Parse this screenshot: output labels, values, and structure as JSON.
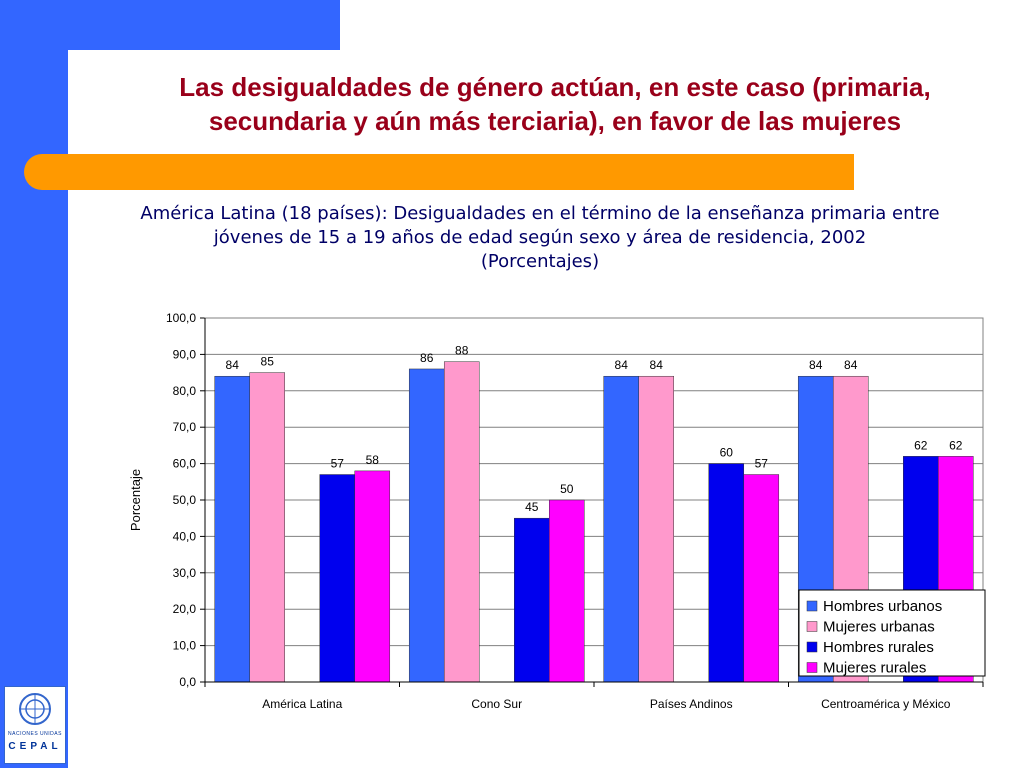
{
  "slide": {
    "title_line1": "Las desigualdades de género actúan, en este caso (primaria,",
    "title_line2": "secundaria y aún más terciaria), en favor de las mujeres",
    "subtitle_line1": "América Latina (18 países): Desigualdades en el término de la enseñanza primaria entre",
    "subtitle_line2": "jóvenes de 15 a 19 años de edad según sexo y área de residencia, 2002",
    "subtitle_line3": "(Porcentajes)"
  },
  "logo": {
    "line1": "NACIONES UNIDAS",
    "line2": "CEPAL"
  },
  "chart_data": {
    "type": "bar",
    "ylabel": "Porcentaje",
    "xlabel": "",
    "ylim": [
      0,
      100
    ],
    "ytick_step": 10,
    "y_tick_format": "comma-one-decimal",
    "grid": true,
    "legend_position": "bottom-right",
    "categories": [
      "América Latina",
      "Cono Sur",
      "Países Andinos",
      "Centroamérica y México"
    ],
    "series": [
      {
        "name": "Hombres urbanos",
        "color": "#3366ff",
        "values": [
          84,
          86,
          84,
          84
        ]
      },
      {
        "name": "Mujeres urbanas",
        "color": "#ff99cc",
        "values": [
          85,
          88,
          84,
          84
        ]
      },
      {
        "name": "Hombres rurales",
        "color": "#0000ee",
        "values": [
          57,
          45,
          60,
          62
        ]
      },
      {
        "name": "Mujeres rurales",
        "color": "#ff00ff",
        "values": [
          58,
          50,
          57,
          62
        ]
      }
    ]
  }
}
